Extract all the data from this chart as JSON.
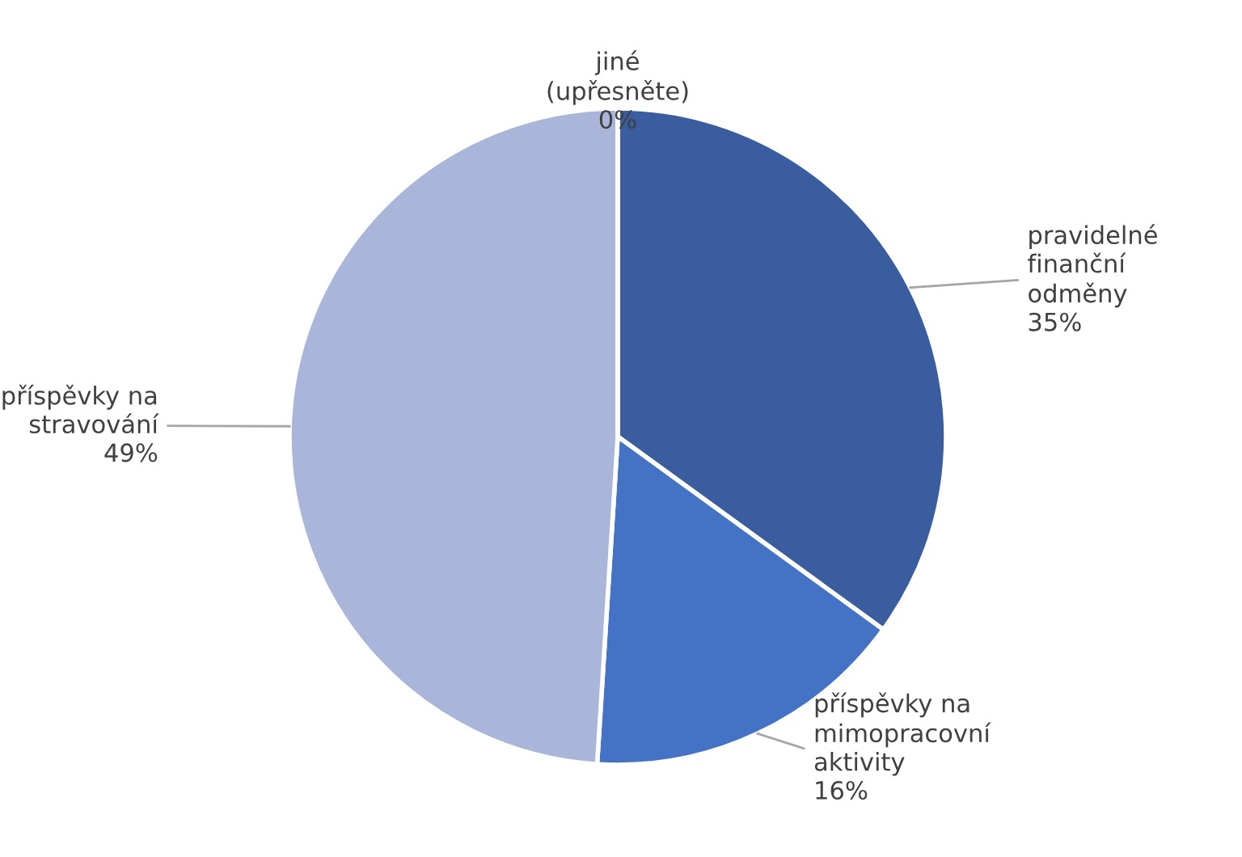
{
  "chart_data": {
    "type": "pie",
    "categories": [
      "pravidelné\nfinanční\nodměny",
      "příspěvky na\nmimopracovní\naktivity",
      "příspěvky na\nstravování",
      "jiné\n(upřesněte)"
    ],
    "values": [
      35,
      16,
      49,
      0
    ],
    "value_labels": [
      "35%",
      "16%",
      "49%",
      "0%"
    ],
    "colors": [
      "#3a5da0",
      "#4472c4",
      "#a9b6da",
      "#8497b0"
    ],
    "legend": false
  }
}
